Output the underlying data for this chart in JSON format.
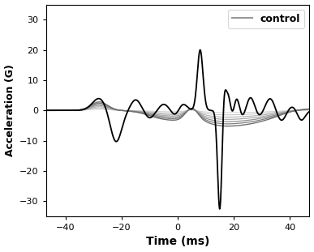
{
  "title": "",
  "xlabel": "Time (ms)",
  "ylabel": "Acceleration (G)",
  "xlim": [
    -47,
    47
  ],
  "ylim": [
    -35,
    35
  ],
  "xticks": [
    -40,
    -20,
    0,
    20,
    40
  ],
  "yticks": [
    -30,
    -20,
    -10,
    0,
    10,
    20,
    30
  ],
  "legend_label": "control",
  "legend_color": "#999999",
  "background_color": "#ffffff",
  "figsize": [
    3.87,
    3.11
  ],
  "dpi": 100
}
